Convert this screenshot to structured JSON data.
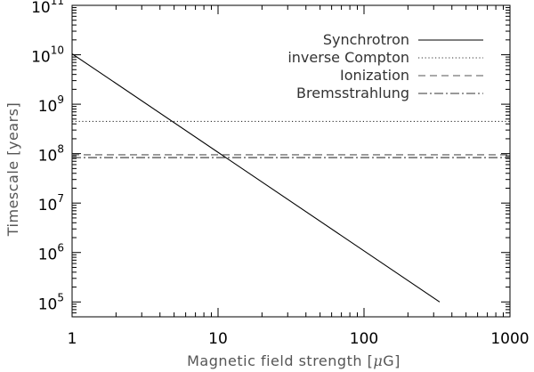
{
  "chart_data": {
    "type": "line",
    "title": "",
    "xlabel_main": "Magnetic field strength [",
    "xlabel_mu": "μ",
    "xlabel_unit": "G]",
    "ylabel": "Timescale [years]",
    "x_scale": "log",
    "y_scale": "log",
    "xlim": [
      1,
      1000
    ],
    "ylim": [
      50000,
      100000000000
    ],
    "x_ticks": [
      {
        "value": 1,
        "label": "1"
      },
      {
        "value": 10,
        "label": "10"
      },
      {
        "value": 100,
        "label": "100"
      },
      {
        "value": 1000,
        "label": "1000"
      }
    ],
    "y_ticks": [
      {
        "value": 100000,
        "base": "10",
        "exp": "5"
      },
      {
        "value": 1000000,
        "base": "10",
        "exp": "6"
      },
      {
        "value": 10000000,
        "base": "10",
        "exp": "7"
      },
      {
        "value": 100000000,
        "base": "10",
        "exp": "8"
      },
      {
        "value": 1000000000,
        "base": "10",
        "exp": "9"
      },
      {
        "value": 10000000000,
        "base": "10",
        "exp": "10"
      },
      {
        "value": 100000000000,
        "base": "10",
        "exp": "11"
      }
    ],
    "grid": false,
    "legend_position": "top-right",
    "series": [
      {
        "name": "Synchrotron",
        "style": "solid",
        "color": "#000000",
        "x": [
          1,
          330
        ],
        "y": [
          10500000000,
          100000
        ]
      },
      {
        "name": "inverse Compton",
        "style": "dotted",
        "color": "#333333",
        "x": [
          1,
          1000
        ],
        "y": [
          450000000,
          450000000
        ]
      },
      {
        "name": "Ionization",
        "style": "dashed",
        "color": "#555555",
        "x": [
          1,
          1000
        ],
        "y": [
          95000000,
          95000000
        ]
      },
      {
        "name": "Bremsstrahlung",
        "style": "dash-dot",
        "color": "#333333",
        "x": [
          1,
          1000
        ],
        "y": [
          83000000,
          83000000
        ]
      }
    ]
  }
}
